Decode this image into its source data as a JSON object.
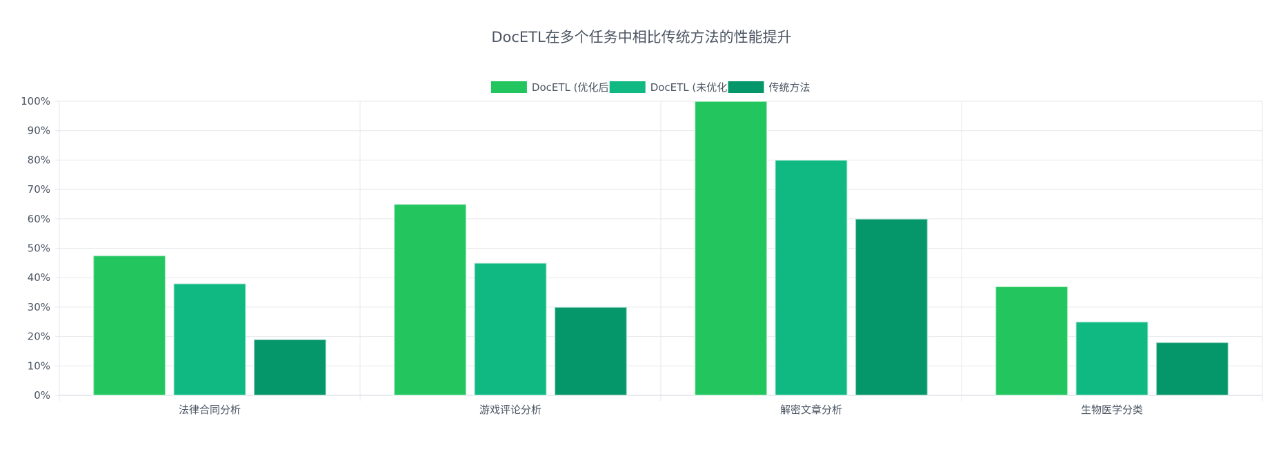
{
  "chart_data": {
    "type": "bar",
    "title": "DocETL在多个任务中相比传统方法的性能提升",
    "categories": [
      "法律合同分析",
      "游戏评论分析",
      "解密文章分析",
      "生物医学分类"
    ],
    "series": [
      {
        "name": "DocETL (优化后)",
        "values": [
          47.5,
          65,
          100,
          37
        ],
        "color": "#22c55e"
      },
      {
        "name": "DocETL (未优化)",
        "values": [
          38,
          45,
          80,
          25
        ],
        "color": "#10b981"
      },
      {
        "name": "传统方法",
        "values": [
          19,
          30,
          60,
          18
        ],
        "color": "#059669"
      }
    ],
    "ylim": [
      0,
      100
    ],
    "yticks": [
      "0%",
      "10%",
      "20%",
      "30%",
      "40%",
      "50%",
      "60%",
      "70%",
      "80%",
      "90%",
      "100%"
    ],
    "grid": true,
    "legend_position": "top-center"
  }
}
